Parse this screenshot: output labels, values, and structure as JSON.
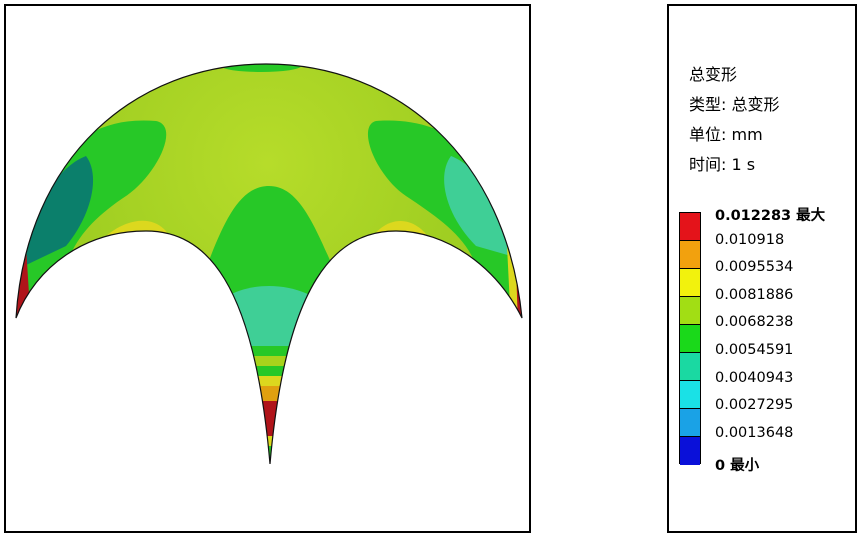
{
  "legend": {
    "title": "总变形",
    "type_line": "类型: 总变形",
    "unit_line": "单位: mm",
    "time_line": "时间: 1 s",
    "max_label": "0.012283 最大",
    "min_label": "0 最小",
    "values": [
      "0.010918",
      "0.0095534",
      "0.0081886",
      "0.0068238",
      "0.0054591",
      "0.0040943",
      "0.0027295",
      "0.0013648"
    ],
    "colors": [
      "#e4131a",
      "#f2a10e",
      "#f2f20d",
      "#a2de14",
      "#1ad91a",
      "#1ad9a2",
      "#1ae1e6",
      "#1aa2e6",
      "#0a10d9"
    ]
  },
  "model": {
    "shape": "spherical-dome-shell",
    "colors": {
      "yellow_green": "#a8d31c",
      "green": "#27c827",
      "teal": "#3fcf96",
      "dark_teal": "#0b7f6b",
      "yellow": "#dcd81e",
      "orange": "#e0a010",
      "red": "#b0141a",
      "outline": "#111111"
    }
  }
}
